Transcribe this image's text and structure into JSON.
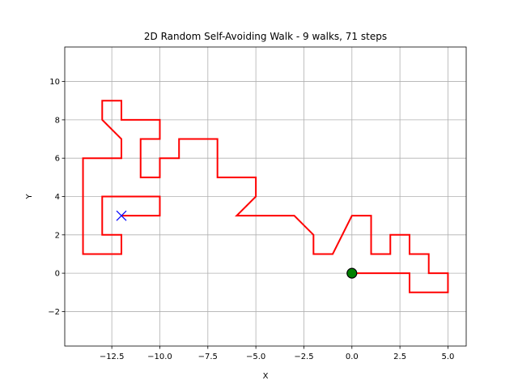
{
  "chart_data": {
    "type": "line",
    "title": "2D Random Self-Avoiding Walk - 9 walks, 71 steps",
    "xlabel": "X",
    "ylabel": "Y",
    "xlim": [
      -14.95,
      5.95
    ],
    "ylim": [
      -3.8,
      11.8
    ],
    "xticks": [
      -12.5,
      -10.0,
      -7.5,
      -5.0,
      -2.5,
      0.0,
      2.5,
      5.0
    ],
    "xtick_labels": [
      "−12.5",
      "−10.0",
      "−7.5",
      "−5.0",
      "−2.5",
      "0.0",
      "2.5",
      "5.0"
    ],
    "yticks": [
      -2,
      0,
      2,
      4,
      6,
      8,
      10
    ],
    "ytick_labels": [
      "−2",
      "0",
      "2",
      "4",
      "6",
      "8",
      "10"
    ],
    "grid": true,
    "path_color": "#ff0000",
    "start_marker_color": "#008000",
    "end_marker_color": "#0000ff",
    "start": {
      "x": 0,
      "y": 0
    },
    "end": {
      "x": -12,
      "y": 3
    },
    "series": [
      {
        "x": [
          0,
          1,
          2,
          3,
          3,
          4,
          5,
          5,
          4,
          4,
          3,
          3,
          2,
          2,
          1,
          1,
          0,
          -1,
          -2,
          -2,
          -3,
          -4,
          -5,
          -6,
          -6,
          -5,
          -5,
          -6,
          -7,
          -7,
          -8,
          -9,
          -9,
          -10,
          -10,
          -11,
          -11,
          -10,
          -10,
          -11,
          -12,
          -12,
          -13,
          -13,
          -12,
          -12,
          -13,
          -14,
          -14,
          -13,
          -12,
          -12,
          -13,
          -13,
          -12,
          -11,
          -10,
          -10,
          -11,
          -12
        ],
        "y": [
          0,
          0,
          0,
          0,
          -1,
          -1,
          -1,
          0,
          0,
          1,
          1,
          2,
          2,
          1,
          1,
          3,
          3,
          1,
          1,
          2,
          3,
          3,
          3,
          3,
          3,
          4,
          5,
          5,
          5,
          7,
          7,
          7,
          6,
          6,
          5,
          5,
          7,
          7,
          8,
          8,
          8,
          9,
          9,
          8,
          7,
          6,
          6,
          6,
          1,
          1,
          1,
          2,
          2,
          4,
          4,
          4,
          4,
          3,
          3,
          3
        ]
      }
    ]
  }
}
